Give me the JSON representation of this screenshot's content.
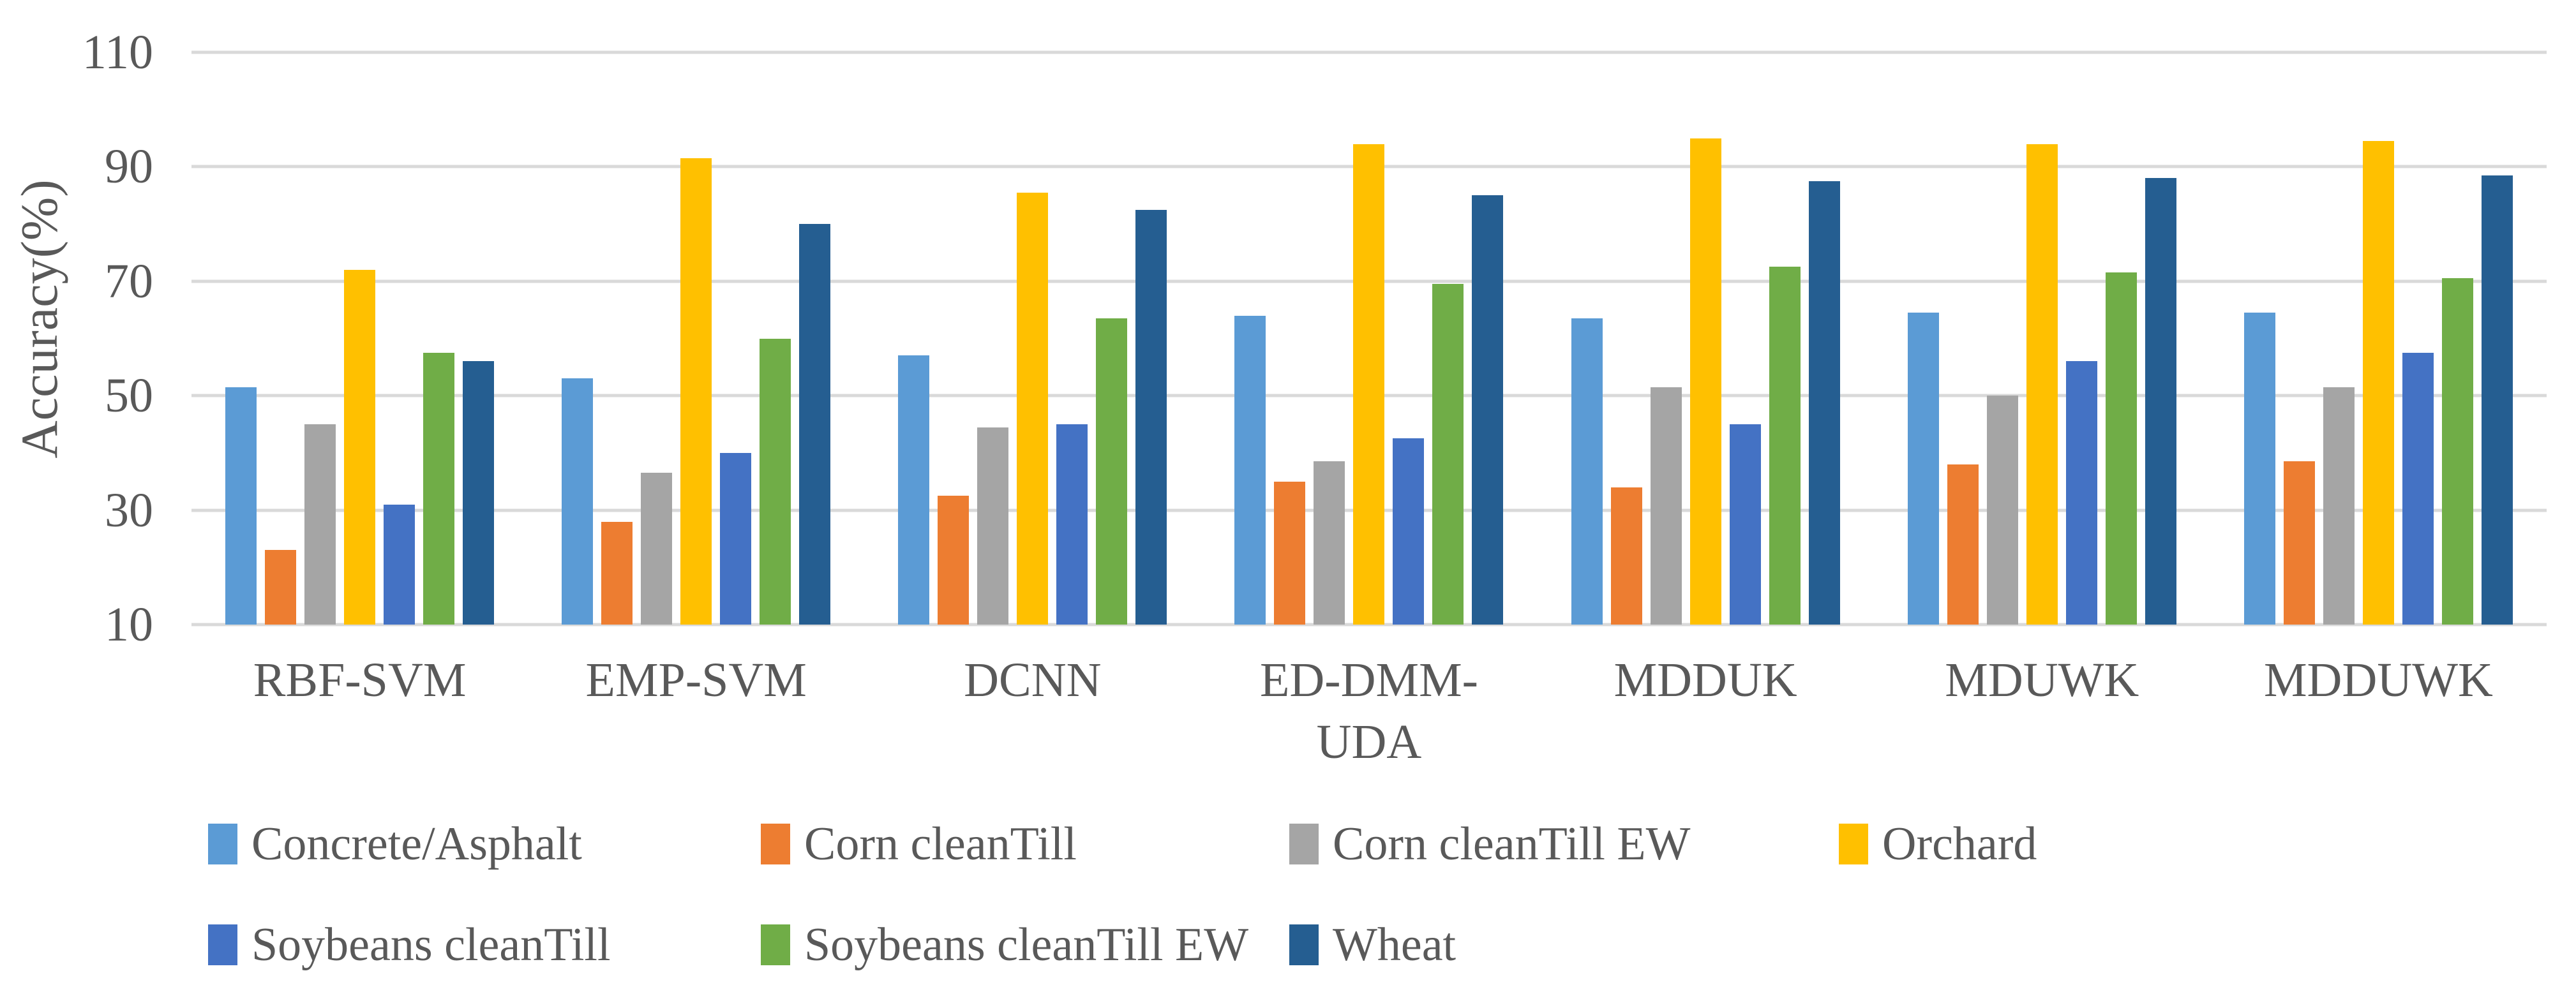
{
  "chart_data": {
    "type": "bar",
    "title": "",
    "xlabel": "",
    "ylabel": "Accuracy(%)",
    "ylim": [
      10,
      110
    ],
    "yticks": [
      110,
      90,
      70,
      50,
      30,
      10
    ],
    "grid": true,
    "legend_position": "bottom",
    "categories": [
      "RBF-SVM",
      "EMP-SVM",
      "DCNN",
      "ED-DMM-UDA",
      "MDDUK",
      "MDUWK",
      "MDDUWK"
    ],
    "categories_display": [
      "RBF-SVM",
      "EMP-SVM",
      "DCNN",
      "ED-DMM-\nUDA",
      "MDDUK",
      "MDUWK",
      "MDDUWK"
    ],
    "series": [
      {
        "name": "Concrete/Asphalt",
        "color": "#5B9BD5",
        "values": [
          51.5,
          53,
          57,
          64,
          63.5,
          64.5,
          64.5
        ]
      },
      {
        "name": "Corn cleanTill",
        "color": "#ED7D31",
        "values": [
          23,
          28,
          32.5,
          35,
          34,
          38,
          38.5
        ]
      },
      {
        "name": "Corn cleanTill EW",
        "color": "#A5A5A5",
        "values": [
          45,
          36.5,
          44.5,
          38.5,
          51.5,
          50,
          51.5
        ]
      },
      {
        "name": "Orchard",
        "color": "#FFC000",
        "values": [
          72,
          91.5,
          85.5,
          94,
          95,
          94,
          94.5
        ]
      },
      {
        "name": "Soybeans cleanTill",
        "color": "#4472C4",
        "values": [
          31,
          40,
          45,
          42.5,
          45,
          56,
          57.5
        ]
      },
      {
        "name": "Soybeans cleanTill EW",
        "color": "#70AD47",
        "values": [
          57.5,
          60,
          63.5,
          69.5,
          72.5,
          71.5,
          70.5
        ]
      },
      {
        "name": "Wheat",
        "color": "#255E91",
        "values": [
          56,
          80,
          82.5,
          85,
          87.5,
          88,
          88.5
        ]
      }
    ],
    "legend_rows": [
      [
        0,
        1,
        2,
        3
      ],
      [
        4,
        5,
        6
      ]
    ],
    "legend_row_tops": [
      1278,
      1436
    ],
    "legend_col_lefts": [
      326,
      1192,
      2020,
      2881
    ]
  },
  "colors": {
    "gridline": "#D9D9D9",
    "text": "#595959",
    "background": "#FFFFFF"
  }
}
